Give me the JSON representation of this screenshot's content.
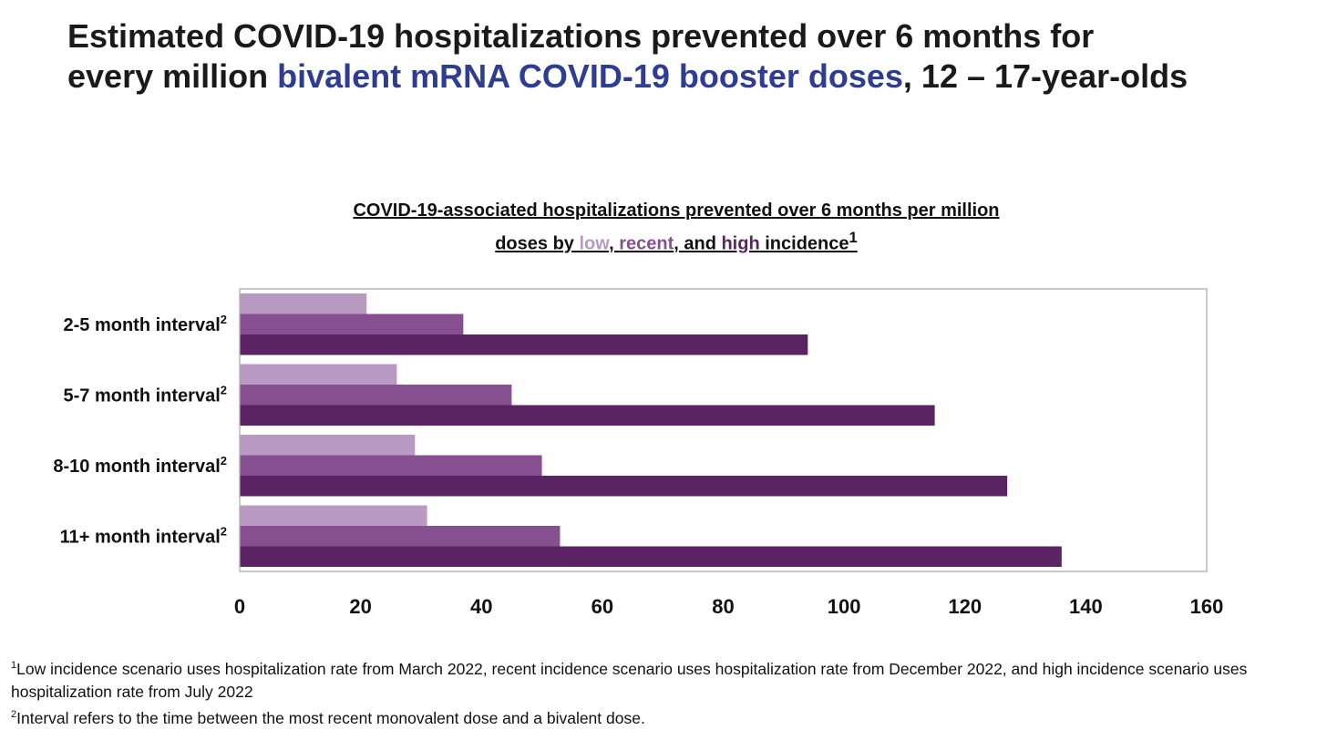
{
  "title": {
    "line1": "Estimated COVID-19 hospitalizations prevented over 6 months for",
    "line2_prefix": "every million ",
    "line2_accent": "bivalent mRNA COVID-19 booster doses",
    "line2_suffix": ", 12 – 17-year-olds"
  },
  "subtitle": {
    "line1": "COVID-19-associated hospitalizations prevented over 6 months per million",
    "line2_prefix": "doses by ",
    "low": "low",
    "sep1": ", ",
    "recent": "recent",
    "sep2": ", and ",
    "high": "high",
    "suffix": " incidence",
    "sup": "1"
  },
  "colors": {
    "low": "#b89ac2",
    "recent": "#864f8f",
    "high": "#5a2462",
    "accent": "#2e3d91"
  },
  "chart_data": {
    "type": "bar",
    "orientation": "horizontal",
    "categories": [
      "2-5 month interval",
      "5-7 month interval",
      "8-10 month interval",
      "11+ month interval"
    ],
    "category_superscript": "2",
    "series": [
      {
        "name": "low",
        "values": [
          21,
          26,
          29,
          31
        ]
      },
      {
        "name": "recent",
        "values": [
          37,
          45,
          50,
          53
        ]
      },
      {
        "name": "high",
        "values": [
          94,
          115,
          127,
          136
        ]
      }
    ],
    "xlim": [
      0,
      160
    ],
    "xticks": [
      0,
      20,
      40,
      60,
      80,
      100,
      120,
      140,
      160
    ],
    "grid": false,
    "legend": "none"
  },
  "footnotes": {
    "note1_sup": "1",
    "note1": "Low incidence scenario uses hospitalization rate from March 2022, recent incidence scenario uses hospitalization rate from December 2022, and high incidence scenario uses hospitalization rate from July 2022",
    "note2_sup": "2",
    "note2": "Interval refers to the time between the most recent monovalent dose and a bivalent dose."
  }
}
